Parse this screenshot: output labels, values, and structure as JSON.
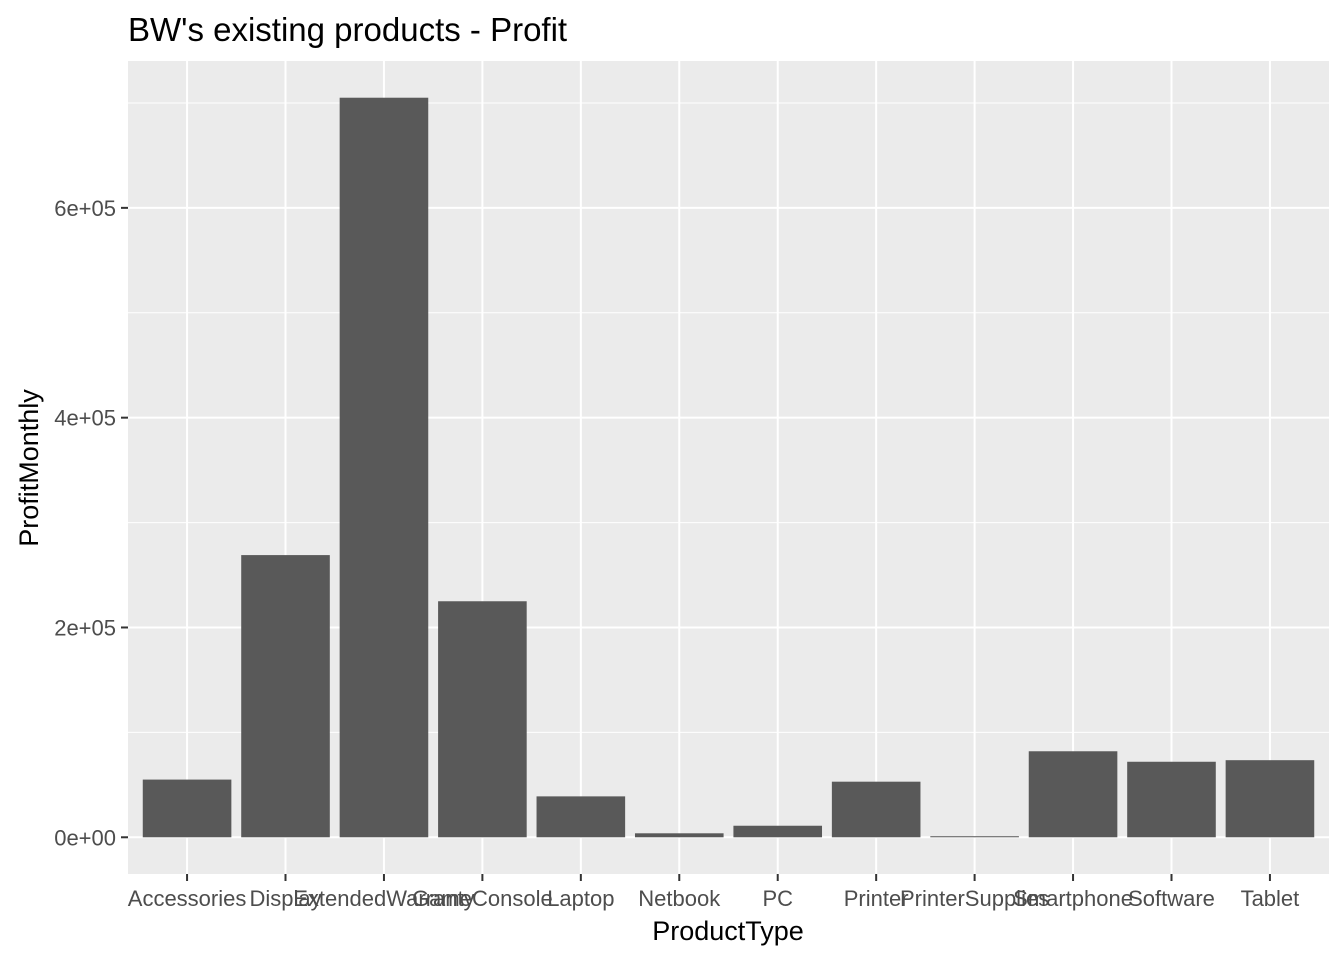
{
  "chart_data": {
    "type": "bar",
    "title": "BW's existing products - Profit",
    "xlabel": "ProductType",
    "ylabel": "ProfitMonthly",
    "categories": [
      "Accessories",
      "Display",
      "ExtendedWarranty",
      "GameConsole",
      "Laptop",
      "Netbook",
      "PC",
      "Printer",
      "PrinterSupplies",
      "Smartphone",
      "Software",
      "Tablet"
    ],
    "values": [
      55000,
      269000,
      705000,
      225000,
      39000,
      3800,
      11000,
      53000,
      1000,
      82000,
      72000,
      73500
    ],
    "ylim": [
      -35000,
      740000
    ],
    "yticks": [
      0,
      200000,
      400000,
      600000
    ],
    "ytick_labels": [
      "0e+00",
      "2e+05",
      "4e+05",
      "6e+05"
    ],
    "grid": true,
    "colors": {
      "bar": "#595959",
      "panel": "#ebebeb",
      "grid": "#ffffff"
    }
  }
}
